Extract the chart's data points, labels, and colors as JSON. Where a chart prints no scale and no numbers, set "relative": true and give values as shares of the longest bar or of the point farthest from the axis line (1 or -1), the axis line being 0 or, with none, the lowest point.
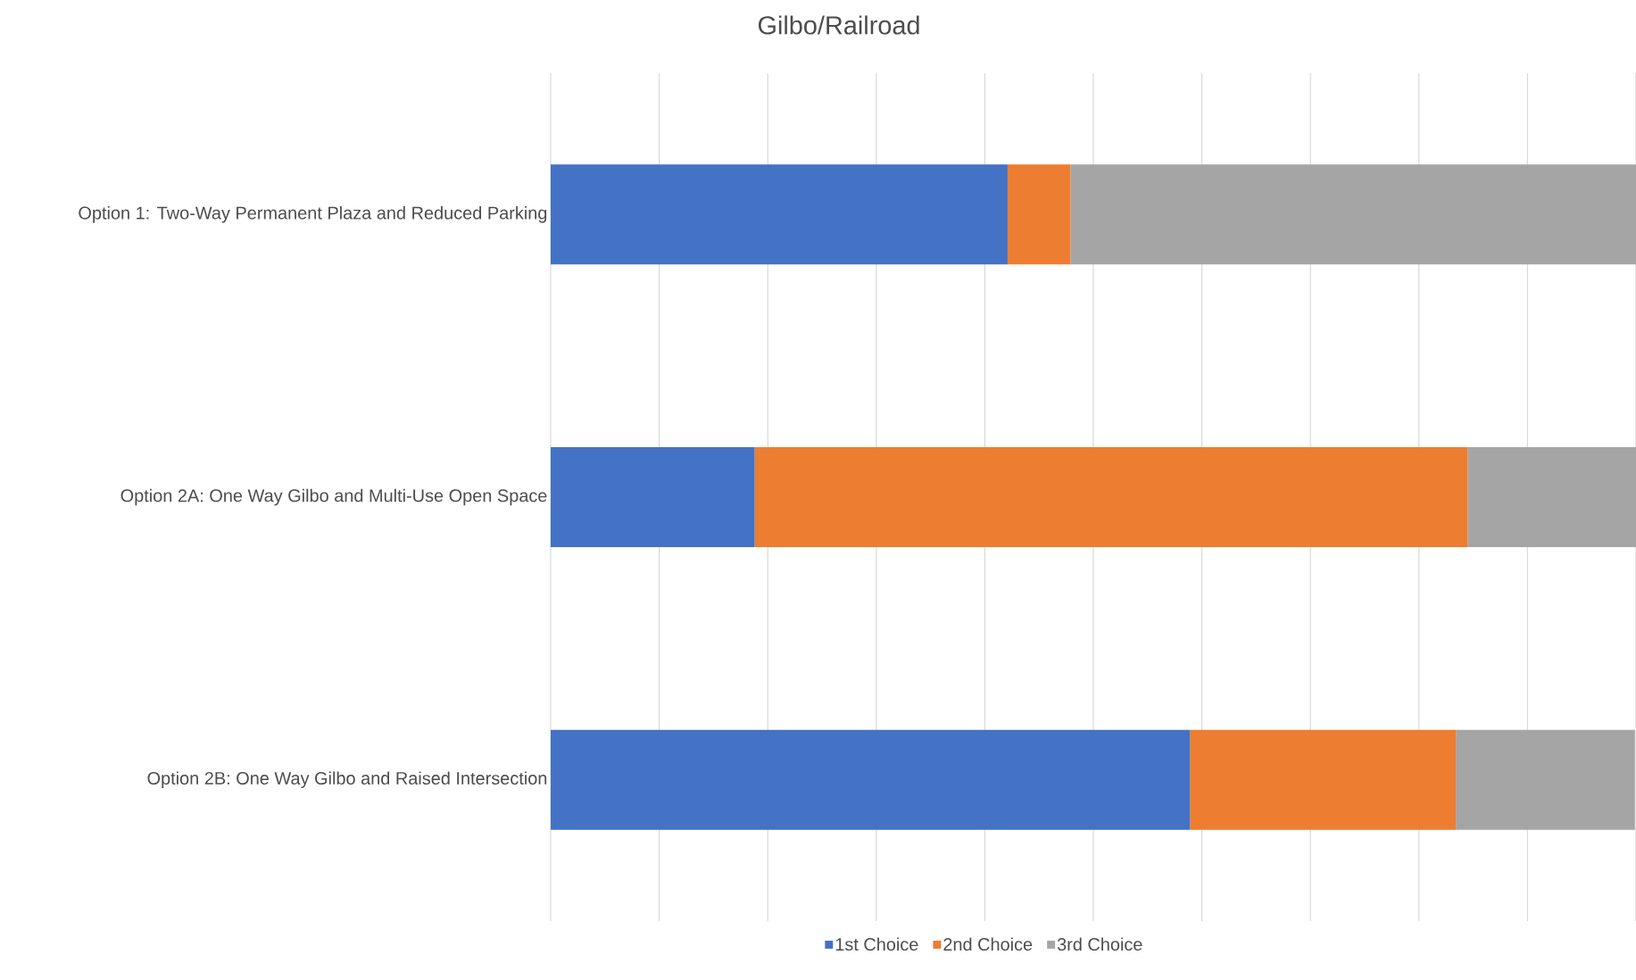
{
  "chart_data": {
    "type": "bar",
    "title": "Gilbo/Railroad",
    "orientation": "horizontal",
    "stacked": true,
    "relative": true,
    "grid": "x",
    "legend": "bottom",
    "categories": [
      "Option 1: Two-Way Permanent Plaza and Reduced Parking",
      "Option 2A: One Way Gilbo and Multi-Use Open Space",
      "Option 2B: One Way Gilbo and Raised Intersection"
    ],
    "series": [
      {
        "name": "1st Choice",
        "color": "#4472c4",
        "values": [
          0.421,
          0.188,
          0.589
        ]
      },
      {
        "name": "2nd Choice",
        "color": "#ed7d31",
        "values": [
          0.058,
          0.657,
          0.245
        ]
      },
      {
        "name": "3rd Choice",
        "color": "#a5a5a5",
        "values": [
          0.521,
          0.155,
          0.165
        ]
      }
    ]
  }
}
